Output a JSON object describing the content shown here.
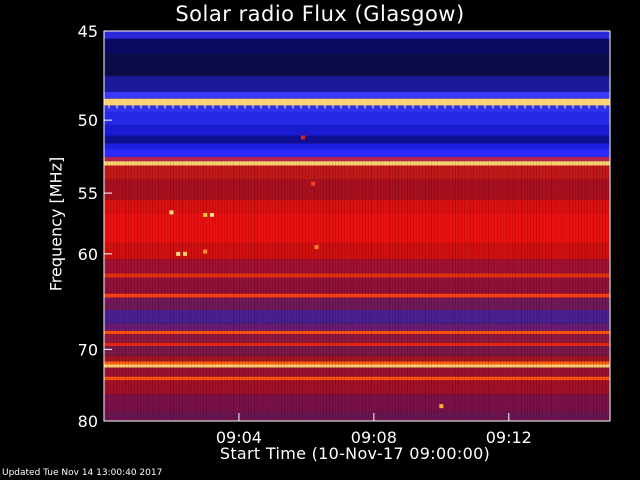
{
  "chart_data": {
    "type": "heatmap",
    "title": "Solar radio Flux (Glasgow)",
    "xlabel": "Start Time (10-Nov-17 09:00:00)",
    "ylabel": "Frequency [MHz]",
    "x_range_minutes": [
      0,
      15
    ],
    "y_range_mhz": [
      45,
      80
    ],
    "x_ticks": [
      {
        "minute": 4,
        "label": "09:04"
      },
      {
        "minute": 8,
        "label": "09:08"
      },
      {
        "minute": 12,
        "label": "09:12"
      }
    ],
    "y_ticks": [
      {
        "mhz": 45,
        "label": "45"
      },
      {
        "mhz": 50,
        "label": "50"
      },
      {
        "mhz": 55,
        "label": "55"
      },
      {
        "mhz": 60,
        "label": "60"
      },
      {
        "mhz": 70,
        "label": "70"
      },
      {
        "mhz": 80,
        "label": "80"
      }
    ],
    "bands": [
      {
        "from_mhz": 45.0,
        "to_mhz": 45.4,
        "color": "#2a2ad8"
      },
      {
        "from_mhz": 45.4,
        "to_mhz": 46.2,
        "color": "#0a0a60"
      },
      {
        "from_mhz": 46.2,
        "to_mhz": 47.4,
        "color": "#0c0c48"
      },
      {
        "from_mhz": 47.4,
        "to_mhz": 48.3,
        "color": "#1a1a9a"
      },
      {
        "from_mhz": 48.3,
        "to_mhz": 48.7,
        "color": "#3a3aff"
      },
      {
        "from_mhz": 48.7,
        "to_mhz": 49.1,
        "color": "#ffd070"
      },
      {
        "from_mhz": 49.1,
        "to_mhz": 49.5,
        "color": "#3030f0"
      },
      {
        "from_mhz": 49.5,
        "to_mhz": 50.3,
        "color": "#2828e8"
      },
      {
        "from_mhz": 50.3,
        "to_mhz": 51.0,
        "color": "#1a1ad0"
      },
      {
        "from_mhz": 51.0,
        "to_mhz": 51.5,
        "color": "#0e0e90"
      },
      {
        "from_mhz": 51.5,
        "to_mhz": 51.9,
        "color": "#1e1ee0"
      },
      {
        "from_mhz": 51.9,
        "to_mhz": 52.4,
        "color": "#2a2aff"
      },
      {
        "from_mhz": 52.4,
        "to_mhz": 52.7,
        "color": "#b02050"
      },
      {
        "from_mhz": 52.7,
        "to_mhz": 53.0,
        "color": "#ffd070"
      },
      {
        "from_mhz": 53.0,
        "to_mhz": 54.0,
        "color": "#c01818"
      },
      {
        "from_mhz": 54.0,
        "to_mhz": 55.5,
        "color": "#a81020"
      },
      {
        "from_mhz": 55.5,
        "to_mhz": 56.5,
        "color": "#d81010"
      },
      {
        "from_mhz": 56.5,
        "to_mhz": 59.0,
        "color": "#e81010"
      },
      {
        "from_mhz": 59.0,
        "to_mhz": 60.5,
        "color": "#d01010"
      },
      {
        "from_mhz": 60.5,
        "to_mhz": 61.8,
        "color": "#a01030"
      },
      {
        "from_mhz": 61.8,
        "to_mhz": 62.2,
        "color": "#e83010"
      },
      {
        "from_mhz": 62.2,
        "to_mhz": 63.8,
        "color": "#901038"
      },
      {
        "from_mhz": 63.8,
        "to_mhz": 64.2,
        "color": "#ff4010"
      },
      {
        "from_mhz": 64.2,
        "to_mhz": 65.5,
        "color": "#701858"
      },
      {
        "from_mhz": 65.5,
        "to_mhz": 67.0,
        "color": "#4a2090"
      },
      {
        "from_mhz": 67.0,
        "to_mhz": 67.8,
        "color": "#6a1a70"
      },
      {
        "from_mhz": 67.8,
        "to_mhz": 68.2,
        "color": "#ff5010"
      },
      {
        "from_mhz": 68.2,
        "to_mhz": 69.2,
        "color": "#901840"
      },
      {
        "from_mhz": 69.2,
        "to_mhz": 69.6,
        "color": "#e82810"
      },
      {
        "from_mhz": 69.6,
        "to_mhz": 70.8,
        "color": "#7a1848"
      },
      {
        "from_mhz": 70.8,
        "to_mhz": 71.5,
        "color": "#a01428"
      },
      {
        "from_mhz": 71.5,
        "to_mhz": 71.9,
        "color": "#ff6010"
      },
      {
        "from_mhz": 71.9,
        "to_mhz": 72.3,
        "color": "#ffd070"
      },
      {
        "from_mhz": 72.3,
        "to_mhz": 73.5,
        "color": "#9a1030"
      },
      {
        "from_mhz": 73.5,
        "to_mhz": 74.0,
        "color": "#ff5010"
      },
      {
        "from_mhz": 74.0,
        "to_mhz": 76.0,
        "color": "#a01028"
      },
      {
        "from_mhz": 76.0,
        "to_mhz": 78.5,
        "color": "#7a1048"
      },
      {
        "from_mhz": 78.5,
        "to_mhz": 80.0,
        "color": "#6a1450"
      }
    ],
    "bright_spots": [
      {
        "minute": 2.0,
        "mhz": 56.5,
        "color": "#ffe080"
      },
      {
        "minute": 3.0,
        "mhz": 56.7,
        "color": "#ffc040"
      },
      {
        "minute": 3.2,
        "mhz": 56.7,
        "color": "#ffe080"
      },
      {
        "minute": 2.2,
        "mhz": 60.0,
        "color": "#ffe080"
      },
      {
        "minute": 2.4,
        "mhz": 60.0,
        "color": "#ffd060"
      },
      {
        "minute": 3.0,
        "mhz": 59.8,
        "color": "#ff9030"
      },
      {
        "minute": 6.3,
        "mhz": 59.4,
        "color": "#ff8030"
      },
      {
        "minute": 5.9,
        "mhz": 51.1,
        "color": "#e02020"
      },
      {
        "minute": 6.2,
        "mhz": 54.3,
        "color": "#ff4020"
      },
      {
        "minute": 10.0,
        "mhz": 77.7,
        "color": "#ffb040"
      }
    ]
  },
  "footer": {
    "updated_text": "Updated Tue Nov 14 13:00:40 2017"
  },
  "colors": {
    "background": "#000000",
    "text": "#ffffff"
  }
}
